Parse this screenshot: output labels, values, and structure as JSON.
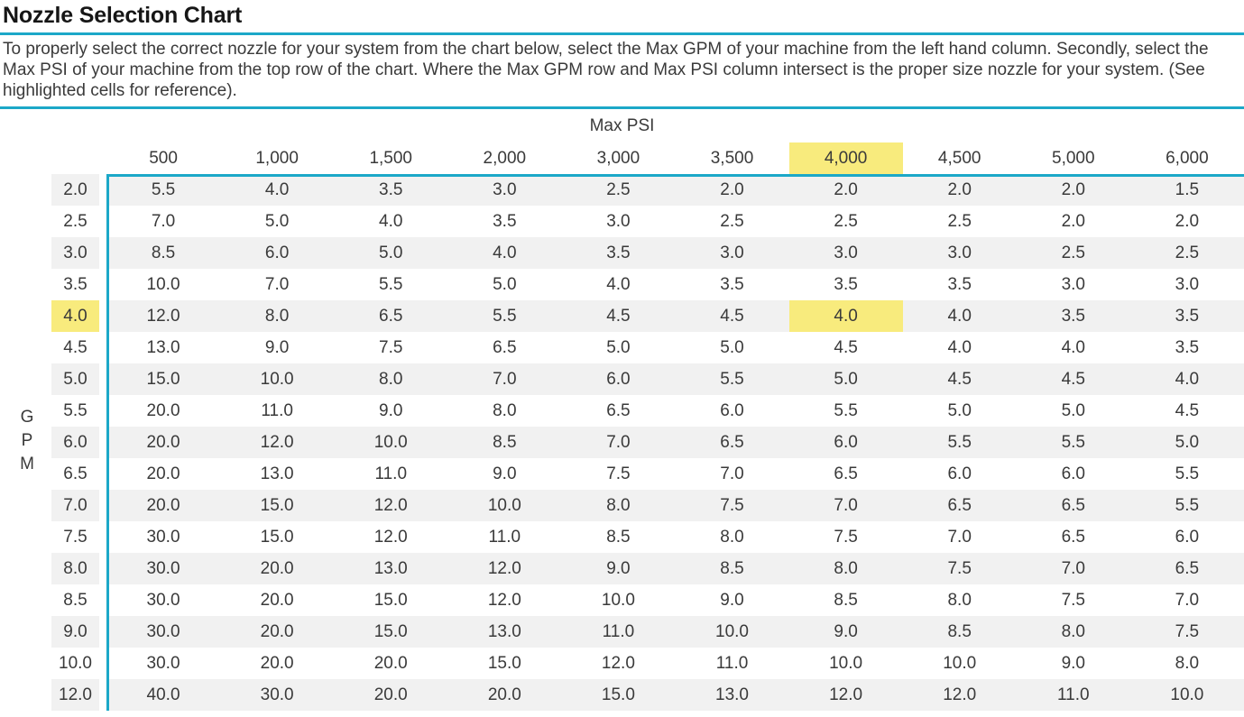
{
  "title": "Nozzle Selection Chart",
  "description": "To properly select the correct nozzle for your system from the chart below, select the Max GPM of your machine from the left hand column. Secondly, select the Max PSI of your machine from the top row of the chart. Where the Max GPM row and Max PSI column intersect is the proper size nozzle for your system. (See highlighted cells for reference).",
  "chart_data": {
    "type": "table",
    "title": "Nozzle Selection Chart",
    "columns_label": "Max PSI",
    "rows_label": "GPM",
    "columns": [
      "500",
      "1,000",
      "1,500",
      "2,000",
      "3,000",
      "3,500",
      "4,000",
      "4,500",
      "5,000",
      "6,000"
    ],
    "rows": [
      "2.0",
      "2.5",
      "3.0",
      "3.5",
      "4.0",
      "4.5",
      "5.0",
      "5.5",
      "6.0",
      "6.5",
      "7.0",
      "7.5",
      "8.0",
      "8.5",
      "9.0",
      "10.0",
      "12.0"
    ],
    "values": [
      [
        "5.5",
        "4.0",
        "3.5",
        "3.0",
        "2.5",
        "2.0",
        "2.0",
        "2.0",
        "2.0",
        "1.5"
      ],
      [
        "7.0",
        "5.0",
        "4.0",
        "3.5",
        "3.0",
        "2.5",
        "2.5",
        "2.5",
        "2.0",
        "2.0"
      ],
      [
        "8.5",
        "6.0",
        "5.0",
        "4.0",
        "3.5",
        "3.0",
        "3.0",
        "3.0",
        "2.5",
        "2.5"
      ],
      [
        "10.0",
        "7.0",
        "5.5",
        "5.0",
        "4.0",
        "3.5",
        "3.5",
        "3.5",
        "3.0",
        "3.0"
      ],
      [
        "12.0",
        "8.0",
        "6.5",
        "5.5",
        "4.5",
        "4.5",
        "4.0",
        "4.0",
        "3.5",
        "3.5"
      ],
      [
        "13.0",
        "9.0",
        "7.5",
        "6.5",
        "5.0",
        "5.0",
        "4.5",
        "4.0",
        "4.0",
        "3.5"
      ],
      [
        "15.0",
        "10.0",
        "8.0",
        "7.0",
        "6.0",
        "5.5",
        "5.0",
        "4.5",
        "4.5",
        "4.0"
      ],
      [
        "20.0",
        "11.0",
        "9.0",
        "8.0",
        "6.5",
        "6.0",
        "5.5",
        "5.0",
        "5.0",
        "4.5"
      ],
      [
        "20.0",
        "12.0",
        "10.0",
        "8.5",
        "7.0",
        "6.5",
        "6.0",
        "5.5",
        "5.5",
        "5.0"
      ],
      [
        "20.0",
        "13.0",
        "11.0",
        "9.0",
        "7.5",
        "7.0",
        "6.5",
        "6.0",
        "6.0",
        "5.5"
      ],
      [
        "20.0",
        "15.0",
        "12.0",
        "10.0",
        "8.0",
        "7.5",
        "7.0",
        "6.5",
        "6.5",
        "5.5"
      ],
      [
        "30.0",
        "15.0",
        "12.0",
        "11.0",
        "8.5",
        "8.0",
        "7.5",
        "7.0",
        "6.5",
        "6.0"
      ],
      [
        "30.0",
        "20.0",
        "13.0",
        "12.0",
        "9.0",
        "8.5",
        "8.0",
        "7.5",
        "7.0",
        "6.5"
      ],
      [
        "30.0",
        "20.0",
        "15.0",
        "12.0",
        "10.0",
        "9.0",
        "8.5",
        "8.0",
        "7.5",
        "7.0"
      ],
      [
        "30.0",
        "20.0",
        "15.0",
        "13.0",
        "11.0",
        "10.0",
        "9.0",
        "8.5",
        "8.0",
        "7.5"
      ],
      [
        "30.0",
        "20.0",
        "20.0",
        "15.0",
        "12.0",
        "11.0",
        "10.0",
        "10.0",
        "9.0",
        "8.0"
      ],
      [
        "40.0",
        "30.0",
        "20.0",
        "20.0",
        "15.0",
        "13.0",
        "12.0",
        "12.0",
        "11.0",
        "10.0"
      ]
    ],
    "highlighted_cell": {
      "row": "4.0",
      "column": "4,000",
      "value": "4.0"
    },
    "layout_hints": {
      "row_stripes": true,
      "stripe_on_odd_rows": true,
      "axis_border": "teal L-shape on top and left of data grid"
    }
  },
  "colors": {
    "accent_teal": "#1CA8C8",
    "highlight_yellow": "#F8EB7D",
    "row_stripe": "#F1F1F1",
    "text_color": "#3A3A3A",
    "title_color": "#161616"
  }
}
